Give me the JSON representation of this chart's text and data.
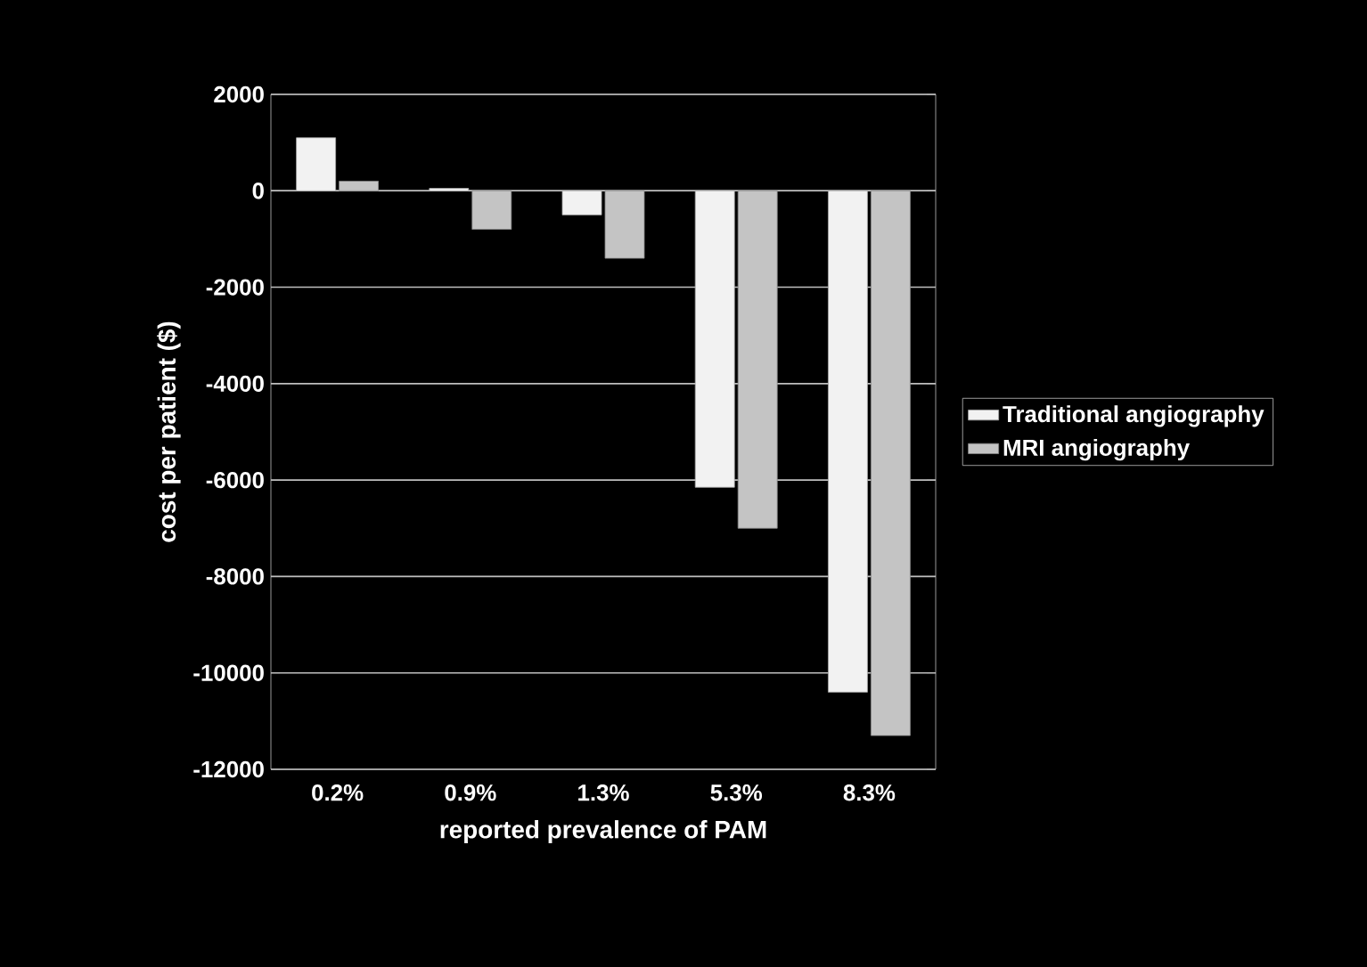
{
  "chart_data": {
    "type": "bar",
    "xlabel": "reported prevalence of PAM",
    "ylabel": "cost per patient ($)",
    "categories": [
      "0.2%",
      "0.9%",
      "1.3%",
      "5.3%",
      "8.3%"
    ],
    "series": [
      {
        "name": "Traditional angiography",
        "color": "#f2f2f2",
        "values": [
          1100,
          50,
          -500,
          -6150,
          -10400
        ]
      },
      {
        "name": "MRI angiography",
        "color": "#c4c4c4",
        "values": [
          200,
          -800,
          -1400,
          -7000,
          -11300
        ]
      }
    ],
    "ylim": [
      -12000,
      2000
    ],
    "yticks": [
      -12000,
      -10000,
      -8000,
      -6000,
      -4000,
      -2000,
      0,
      2000
    ],
    "grid": "y",
    "legend": "right"
  }
}
